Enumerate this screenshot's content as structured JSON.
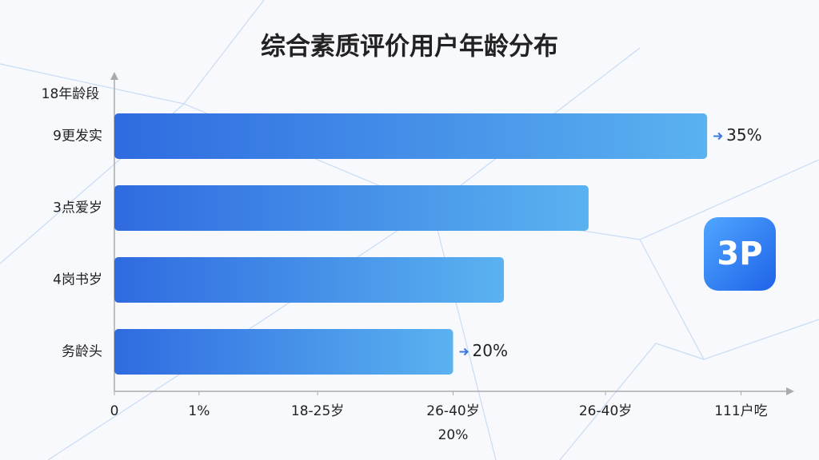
{
  "chart_data": {
    "type": "hbar",
    "title": "综合素质评价用户年龄分布",
    "y_label": "18年龄段",
    "categories": [
      "9更发实",
      "3点爱岁",
      "4岗书岁",
      "务龄头"
    ],
    "values": [
      35,
      28,
      23,
      20
    ],
    "value_labels": [
      "35%",
      null,
      null,
      "20%"
    ],
    "colors": [
      "#2f6be0",
      "#5ab2f0"
    ],
    "xlim": [
      0,
      40
    ],
    "xticks": [
      0,
      {
        "value": 5,
        "label": "1%"
      },
      {
        "value": 12,
        "label": "18-25岁"
      },
      {
        "value": 20,
        "label": "26-40岁"
      },
      {
        "value": 29,
        "label": "26-40岁"
      },
      {
        "value": 37,
        "label": "111户吃"
      }
    ],
    "x_note": "20%",
    "badge": "3P"
  }
}
